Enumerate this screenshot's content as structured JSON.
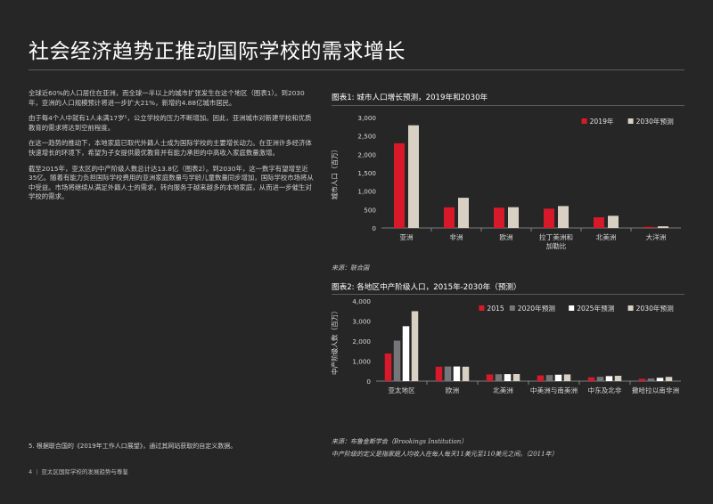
{
  "page": {
    "title": "社会经济趋势正推动国际学校的需求增长",
    "paragraphs": [
      "全球近60%的人口居住在亚洲，而全球一半以上的城市扩张发生在这个地区（图表1）。到2030年，亚洲的人口规模预计将进一步扩大21%，新增约4.88亿城市居民。",
      "由于每4个人中就有1人未满17岁⁵，公立学校的压力不断增加。因此，亚洲城市对新建学校和优质教育的需求将达到空前程度。",
      "在这一趋势的推动下，本地家庭已取代外籍人士成为国际学校的主要增长动力。在亚洲许多经济体快速增长的环境下，希望为子女提供最优教育并有能力承担的中高收入家庭数量激增。",
      "截至2015年，亚太区的中产阶级人数总计达13.8亿（图表2）。到2030年，这一数字有望增至近35亿。随着有能力负担国际学校费用的亚洲家庭数量与学龄儿童数量同步增加，国际学校市场将从中受益。市场将继续从满足外籍人士的需求，转向服务于越来越多的本地家庭，从而进一步催生对学校的需求。"
    ],
    "footnote": "5. 根据联合国的《2019年工作人口展望》，通过其网站获取的自定义数据。",
    "footer_page": "4",
    "footer_title": "亚太区国际学校的发展趋势与尊鉴"
  },
  "chart_data": [
    {
      "type": "bar",
      "title": "图表1:  城市人口增长预测，2019年和2030年",
      "ylabel": "城市人口（百万）",
      "ylim": [
        0,
        3000
      ],
      "yticks": [
        0,
        500,
        1000,
        1500,
        2000,
        2500,
        3000
      ],
      "ytick_labels": [
        "0",
        "500",
        "1,000",
        "1,500",
        "2,000",
        "2,500",
        "3,000"
      ],
      "categories": [
        "亚洲",
        "非洲",
        "欧洲",
        "拉丁美洲和\n加勒比",
        "北美洲",
        "大洋洲"
      ],
      "series": [
        {
          "name": "2019年",
          "color": "#d7192a",
          "values": [
            2300,
            560,
            550,
            525,
            290,
            30
          ]
        },
        {
          "name": "2030年预测",
          "color": "#d8d0c3",
          "values": [
            2790,
            820,
            565,
            595,
            330,
            45
          ]
        }
      ],
      "legend": "top-right",
      "grid": false,
      "source": "来源：联合国"
    },
    {
      "type": "bar",
      "title": "图表2:  各地区中产阶级人口，2015年-2030年（预测）",
      "ylabel": "中产阶级人数（百万）",
      "ylim": [
        0,
        4000
      ],
      "yticks": [
        0,
        1000,
        2000,
        3000,
        4000
      ],
      "ytick_labels": [
        "0",
        "1,000",
        "2,000",
        "3,000",
        "4,000"
      ],
      "categories": [
        "亚太地区",
        "欧洲",
        "北美洲",
        "中美洲与南美洲",
        "中东及北非",
        "撒哈拉以南非洲"
      ],
      "series": [
        {
          "name": "2015",
          "color": "#d7192a",
          "values": [
            1380,
            720,
            335,
            285,
            190,
            115
          ]
        },
        {
          "name": "2020年预测",
          "color": "#76767a",
          "values": [
            2020,
            730,
            345,
            305,
            215,
            130
          ]
        },
        {
          "name": "2025年预测",
          "color": "#ffffff",
          "values": [
            2740,
            730,
            350,
            320,
            250,
            165
          ]
        },
        {
          "name": "2030年预测",
          "color": "#d8d0c3",
          "values": [
            3490,
            720,
            355,
            335,
            265,
            210
          ]
        }
      ],
      "legend": "top-right",
      "grid": false,
      "source": "来源：布鲁金斯学会（Brookings Institution）",
      "note": "中产阶级的定义是指家庭人均收入在每人每天11美元至110美元之间。（2011年）"
    }
  ]
}
